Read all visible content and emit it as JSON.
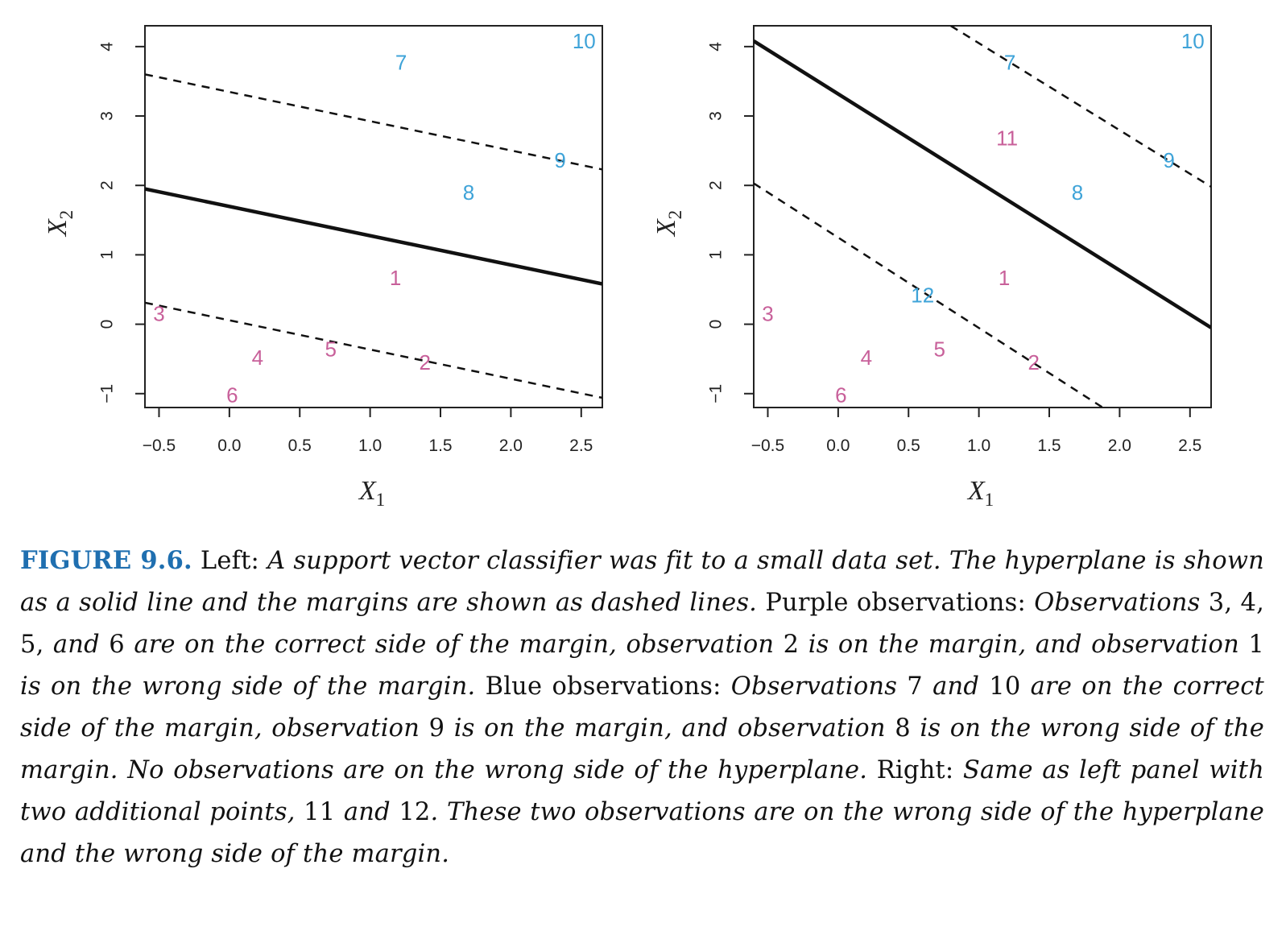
{
  "chart_data": [
    {
      "type": "scatter",
      "panel": "left",
      "title": "",
      "xlabel": "X",
      "xlabel_sub": "1",
      "ylabel": "X",
      "ylabel_sub": "2",
      "xlim": [
        -0.6,
        2.65
      ],
      "ylim": [
        -1.2,
        4.3
      ],
      "xticks": [
        -0.5,
        0.0,
        0.5,
        1.0,
        1.5,
        2.0,
        2.5
      ],
      "xtick_labels": [
        "−0.5",
        "0.0",
        "0.5",
        "1.0",
        "1.5",
        "2.0",
        "2.5"
      ],
      "yticks": [
        -1,
        0,
        1,
        2,
        3,
        4
      ],
      "ytick_labels": [
        "−1",
        "0",
        "1",
        "2",
        "3",
        "4"
      ],
      "grid": false,
      "points": [
        {
          "label": "1",
          "x": 1.18,
          "y": 0.67,
          "class": "purple"
        },
        {
          "label": "2",
          "x": 1.39,
          "y": -0.55,
          "class": "purple"
        },
        {
          "label": "3",
          "x": -0.5,
          "y": 0.15,
          "class": "purple"
        },
        {
          "label": "4",
          "x": 0.2,
          "y": -0.48,
          "class": "purple"
        },
        {
          "label": "5",
          "x": 0.72,
          "y": -0.36,
          "class": "purple"
        },
        {
          "label": "6",
          "x": 0.02,
          "y": -1.02,
          "class": "purple"
        },
        {
          "label": "7",
          "x": 1.22,
          "y": 3.77,
          "class": "blue"
        },
        {
          "label": "8",
          "x": 1.7,
          "y": 1.9,
          "class": "blue"
        },
        {
          "label": "9",
          "x": 2.35,
          "y": 2.36,
          "class": "blue"
        },
        {
          "label": "10",
          "x": 2.52,
          "y": 4.08,
          "class": "blue"
        }
      ],
      "lines": [
        {
          "role": "hyperplane",
          "style": "solid",
          "x": [
            -0.6,
            2.65
          ],
          "y": [
            1.95,
            0.58
          ]
        },
        {
          "role": "margin",
          "style": "dashed",
          "x": [
            -0.6,
            2.65
          ],
          "y": [
            3.6,
            2.23
          ]
        },
        {
          "role": "margin",
          "style": "dashed",
          "x": [
            -0.6,
            2.65
          ],
          "y": [
            0.31,
            -1.06
          ]
        }
      ]
    },
    {
      "type": "scatter",
      "panel": "right",
      "title": "",
      "xlabel": "X",
      "xlabel_sub": "1",
      "ylabel": "X",
      "ylabel_sub": "2",
      "xlim": [
        -0.6,
        2.65
      ],
      "ylim": [
        -1.2,
        4.3
      ],
      "xticks": [
        -0.5,
        0.0,
        0.5,
        1.0,
        1.5,
        2.0,
        2.5
      ],
      "xtick_labels": [
        "−0.5",
        "0.0",
        "0.5",
        "1.0",
        "1.5",
        "2.0",
        "2.5"
      ],
      "yticks": [
        -1,
        0,
        1,
        2,
        3,
        4
      ],
      "ytick_labels": [
        "−1",
        "0",
        "1",
        "2",
        "3",
        "4"
      ],
      "grid": false,
      "points": [
        {
          "label": "1",
          "x": 1.18,
          "y": 0.67,
          "class": "purple"
        },
        {
          "label": "2",
          "x": 1.39,
          "y": -0.55,
          "class": "purple"
        },
        {
          "label": "3",
          "x": -0.5,
          "y": 0.15,
          "class": "purple"
        },
        {
          "label": "4",
          "x": 0.2,
          "y": -0.48,
          "class": "purple"
        },
        {
          "label": "5",
          "x": 0.72,
          "y": -0.36,
          "class": "purple"
        },
        {
          "label": "6",
          "x": 0.02,
          "y": -1.02,
          "class": "purple"
        },
        {
          "label": "7",
          "x": 1.22,
          "y": 3.77,
          "class": "blue"
        },
        {
          "label": "8",
          "x": 1.7,
          "y": 1.9,
          "class": "blue"
        },
        {
          "label": "9",
          "x": 2.35,
          "y": 2.36,
          "class": "blue"
        },
        {
          "label": "10",
          "x": 2.52,
          "y": 4.08,
          "class": "blue"
        },
        {
          "label": "11",
          "x": 1.2,
          "y": 2.68,
          "class": "purple"
        },
        {
          "label": "12",
          "x": 0.6,
          "y": 0.42,
          "class": "blue"
        }
      ],
      "lines": [
        {
          "role": "hyperplane",
          "style": "solid",
          "x": [
            -0.6,
            2.65
          ],
          "y": [
            4.08,
            -0.05
          ]
        },
        {
          "role": "margin",
          "style": "dashed",
          "x": [
            0.8,
            2.65
          ],
          "y": [
            4.3,
            1.98
          ]
        },
        {
          "role": "margin",
          "style": "dashed",
          "x": [
            -0.6,
            1.88
          ],
          "y": [
            2.03,
            -1.2
          ]
        }
      ]
    }
  ],
  "colors": {
    "purple": "#c8609a",
    "blue": "#3ea3d8",
    "axis": "#222222",
    "figure_label": "#1f6fb0"
  },
  "caption": {
    "label": "FIGURE 9.6.",
    "segments": [
      {
        "text": " Left: ",
        "style": "roman"
      },
      {
        "text": "A support vector classifier was fit to a small data set. The hyperplane is shown as a solid line and the margins are shown as dashed lines.",
        "style": "italic"
      },
      {
        "text": " Purple observations: ",
        "style": "roman"
      },
      {
        "text": "Observations ",
        "style": "italic"
      },
      {
        "text": "3, 4, 5,",
        "style": "roman"
      },
      {
        "text": " and ",
        "style": "italic"
      },
      {
        "text": "6",
        "style": "roman"
      },
      {
        "text": " are on the correct side of the margin, observation ",
        "style": "italic"
      },
      {
        "text": "2",
        "style": "roman"
      },
      {
        "text": " is on the margin, and observation ",
        "style": "italic"
      },
      {
        "text": "1",
        "style": "roman"
      },
      {
        "text": " is on the wrong side of the margin.",
        "style": "italic"
      },
      {
        "text": " Blue observations: ",
        "style": "roman"
      },
      {
        "text": "Observations ",
        "style": "italic"
      },
      {
        "text": "7",
        "style": "roman"
      },
      {
        "text": " and ",
        "style": "italic"
      },
      {
        "text": "10",
        "style": "roman"
      },
      {
        "text": " are on the correct side of the margin, observation ",
        "style": "italic"
      },
      {
        "text": "9",
        "style": "roman"
      },
      {
        "text": " is on the margin, and observation ",
        "style": "italic"
      },
      {
        "text": "8",
        "style": "roman"
      },
      {
        "text": " is on the wrong side of the margin. No observations are on the wrong side of the hyperplane.",
        "style": "italic"
      },
      {
        "text": " Right: ",
        "style": "roman"
      },
      {
        "text": "Same as left panel with two additional points, ",
        "style": "italic"
      },
      {
        "text": "11",
        "style": "roman"
      },
      {
        "text": " and ",
        "style": "italic"
      },
      {
        "text": "12",
        "style": "roman"
      },
      {
        "text": ". These two observations are on the wrong side of the hyperplane and the wrong side of the margin.",
        "style": "italic"
      }
    ]
  }
}
